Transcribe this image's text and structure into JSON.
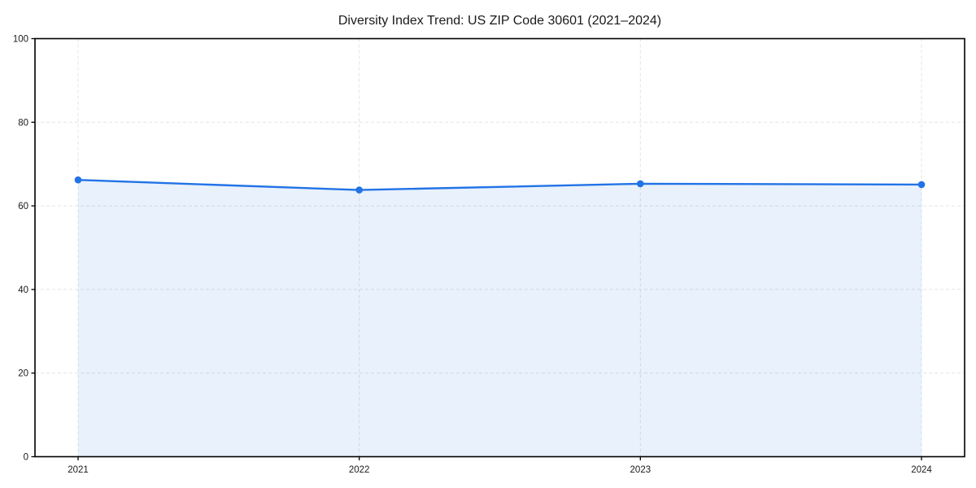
{
  "chart_data": {
    "type": "area",
    "title": "Diversity Index Trend: US ZIP Code 30601 (2021–2024)",
    "categories": [
      "2021",
      "2022",
      "2023",
      "2024"
    ],
    "values": [
      66.2,
      63.8,
      65.3,
      65.1
    ],
    "xlabel": "",
    "ylabel": "",
    "ylim": [
      0,
      100
    ],
    "yticks": [
      0,
      20,
      40,
      60,
      80,
      100
    ],
    "grid": {
      "visible": true,
      "style": "dashed",
      "axes": "both"
    },
    "legend": "none",
    "marker": "circle",
    "colors": {
      "line": "#2273e6",
      "marker": "#2273e6",
      "fill": "#2273e6",
      "fill_opacity": 0.1,
      "gridline": "#e3e3e3",
      "spine": "#000000",
      "text": "#1a1a1a",
      "background": "#ffffff"
    }
  }
}
